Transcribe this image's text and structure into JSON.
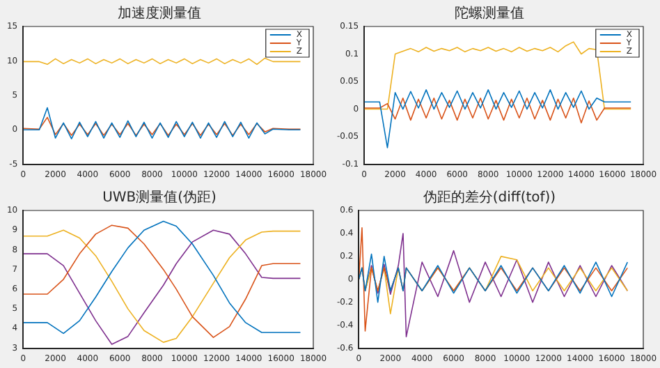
{
  "chart_data": [
    {
      "type": "line",
      "title": "加速度测量值",
      "x": [
        0,
        1000,
        1500,
        2000,
        2500,
        3000,
        3500,
        4000,
        4500,
        5000,
        5500,
        6000,
        6500,
        7000,
        7500,
        8000,
        8500,
        9000,
        9500,
        10000,
        10500,
        11000,
        11500,
        12000,
        12500,
        13000,
        13500,
        14000,
        14500,
        15000,
        15500,
        16500,
        17200
      ],
      "xlim": [
        0,
        18000
      ],
      "xticks": [
        0,
        2000,
        4000,
        6000,
        8000,
        10000,
        12000,
        14000,
        16000,
        18000
      ],
      "ylim": [
        -5,
        15
      ],
      "yticks": [
        -5,
        0,
        5,
        10,
        15
      ],
      "legend": "top right",
      "series": [
        {
          "name": "X",
          "color": "#0072bd",
          "values": [
            0,
            0,
            3.2,
            -1.2,
            1,
            -1.3,
            1.1,
            -1,
            1.2,
            -1.2,
            1,
            -1.1,
            1.3,
            -1,
            1.1,
            -1.2,
            1,
            -1.1,
            1.2,
            -1,
            1.1,
            -1.2,
            1,
            -1.1,
            1.2,
            -1,
            1.1,
            -1.2,
            1,
            -0.6,
            0.1,
            0,
            0
          ]
        },
        {
          "name": "Y",
          "color": "#d95319",
          "values": [
            0.2,
            0.1,
            1.8,
            -0.7,
            0.9,
            -0.8,
            0.8,
            -0.7,
            0.9,
            -0.8,
            0.8,
            -0.7,
            0.9,
            -0.8,
            0.8,
            -0.7,
            0.9,
            -0.8,
            0.8,
            -0.7,
            0.9,
            -0.8,
            0.8,
            -0.7,
            0.9,
            -0.8,
            0.8,
            -0.7,
            0.9,
            -0.3,
            0.2,
            0.1,
            0.1
          ]
        },
        {
          "name": "Z",
          "color": "#edb120",
          "values": [
            9.9,
            9.9,
            9.5,
            10.3,
            9.6,
            10.2,
            9.7,
            10.3,
            9.6,
            10.2,
            9.7,
            10.3,
            9.6,
            10.2,
            9.7,
            10.3,
            9.6,
            10.2,
            9.7,
            10.3,
            9.6,
            10.2,
            9.7,
            10.3,
            9.6,
            10.2,
            9.7,
            10.3,
            9.5,
            10.4,
            9.9,
            9.9,
            9.9
          ]
        }
      ]
    },
    {
      "type": "line",
      "title": "陀螺测量值",
      "x": [
        0,
        1000,
        1500,
        2000,
        2500,
        3000,
        3500,
        4000,
        4500,
        5000,
        5500,
        6000,
        6500,
        7000,
        7500,
        8000,
        8500,
        9000,
        9500,
        10000,
        10500,
        11000,
        11500,
        12000,
        12500,
        13000,
        13500,
        14000,
        14500,
        15000,
        15500,
        16500,
        17200
      ],
      "xlim": [
        0,
        18000
      ],
      "xticks": [
        0,
        2000,
        4000,
        6000,
        8000,
        10000,
        12000,
        14000,
        16000,
        18000
      ],
      "ylim": [
        -0.1,
        0.15
      ],
      "yticks": [
        -0.1,
        -0.05,
        0,
        0.05,
        0.1,
        0.15
      ],
      "legend": "top right",
      "series": [
        {
          "name": "X",
          "color": "#0072bd",
          "values": [
            0.013,
            0.013,
            -0.07,
            0.03,
            0,
            0.032,
            0.002,
            0.035,
            0,
            0.03,
            0.003,
            0.033,
            0,
            0.03,
            0.002,
            0.035,
            0,
            0.03,
            0.003,
            0.033,
            0,
            0.03,
            0.002,
            0.035,
            0,
            0.03,
            0.003,
            0.033,
            0,
            0.02,
            0.013,
            0.013,
            0.013
          ]
        },
        {
          "name": "Y",
          "color": "#d95319",
          "values": [
            0.002,
            0.002,
            0.01,
            -0.018,
            0.02,
            -0.02,
            0.018,
            -0.016,
            0.02,
            -0.018,
            0.016,
            -0.02,
            0.018,
            -0.016,
            0.02,
            -0.018,
            0.016,
            -0.02,
            0.018,
            -0.016,
            0.02,
            -0.018,
            0.016,
            -0.02,
            0.018,
            -0.016,
            0.02,
            -0.025,
            0.015,
            -0.02,
            0.002,
            0.002,
            0.002
          ]
        },
        {
          "name": "Z",
          "color": "#edb120",
          "values": [
            0,
            0,
            0,
            0.1,
            0.105,
            0.11,
            0.104,
            0.112,
            0.105,
            0.11,
            0.106,
            0.112,
            0.104,
            0.11,
            0.106,
            0.112,
            0.105,
            0.11,
            0.104,
            0.112,
            0.105,
            0.11,
            0.106,
            0.112,
            0.104,
            0.115,
            0.122,
            0.1,
            0.11,
            0.108,
            0,
            0,
            0
          ]
        }
      ]
    },
    {
      "type": "line",
      "title": "UWB测量值(伪距)",
      "x": [
        0,
        1500,
        2500,
        3500,
        4500,
        5500,
        6500,
        7500,
        8700,
        9500,
        10500,
        11800,
        12800,
        13800,
        14800,
        15500,
        17200
      ],
      "xlim": [
        0,
        18000
      ],
      "xticks": [
        0,
        2000,
        4000,
        6000,
        8000,
        10000,
        12000,
        14000,
        16000,
        18000
      ],
      "ylim": [
        3,
        10
      ],
      "yticks": [
        3,
        4,
        5,
        6,
        7,
        8,
        9,
        10
      ],
      "series": [
        {
          "color": "#0072bd",
          "values": [
            4.3,
            4.3,
            3.75,
            4.4,
            5.6,
            6.9,
            8.1,
            9.0,
            9.45,
            9.2,
            8.3,
            6.7,
            5.3,
            4.3,
            3.8,
            3.8,
            3.8
          ]
        },
        {
          "color": "#d95319",
          "values": [
            5.75,
            5.75,
            6.5,
            7.8,
            8.8,
            9.25,
            9.1,
            8.3,
            7.0,
            6.0,
            4.6,
            3.55,
            4.1,
            5.5,
            7.2,
            7.3,
            7.3
          ]
        },
        {
          "color": "#edb120",
          "values": [
            8.7,
            8.7,
            9.0,
            8.6,
            7.7,
            6.4,
            5.0,
            3.9,
            3.3,
            3.5,
            4.6,
            6.3,
            7.6,
            8.5,
            8.9,
            8.95,
            8.95
          ]
        },
        {
          "color": "#7e2f8e",
          "values": [
            7.8,
            7.8,
            7.2,
            5.8,
            4.4,
            3.2,
            3.6,
            4.8,
            6.2,
            7.3,
            8.4,
            9.0,
            8.8,
            7.8,
            6.6,
            6.55,
            6.55
          ]
        }
      ]
    },
    {
      "type": "line",
      "title": "伪距的差分(diff(tof))",
      "x": [
        0,
        200,
        400,
        800,
        1200,
        1600,
        2000,
        2500,
        2800,
        3000,
        4000,
        5000,
        6000,
        7000,
        8000,
        9000,
        10000,
        11000,
        12000,
        13000,
        14000,
        15000,
        16000,
        17000
      ],
      "xlim": [
        0,
        18000
      ],
      "xticks": [
        0,
        2000,
        4000,
        6000,
        8000,
        10000,
        12000,
        14000,
        16000,
        18000
      ],
      "ylim": [
        -0.6,
        0.6
      ],
      "yticks": [
        -0.6,
        -0.4,
        -0.2,
        0,
        0.2,
        0.4,
        0.6
      ],
      "series": [
        {
          "color": "#0072bd",
          "values": [
            0,
            0.1,
            -0.1,
            0.22,
            -0.2,
            0.2,
            -0.1,
            0.1,
            -0.1,
            0.1,
            -0.1,
            0.12,
            -0.12,
            0.1,
            -0.1,
            0.12,
            -0.12,
            0.1,
            -0.1,
            0.12,
            -0.12,
            0.15,
            -0.15,
            0.15
          ]
        },
        {
          "color": "#d95319",
          "values": [
            0,
            0.45,
            -0.45,
            0.1,
            -0.1,
            0.1,
            -0.1,
            0.1,
            -0.1,
            0.1,
            -0.1,
            0.1,
            -0.1,
            0.1,
            -0.1,
            0.1,
            -0.1,
            0.1,
            -0.1,
            0.1,
            -0.1,
            0.1,
            -0.1,
            0.1
          ]
        },
        {
          "color": "#edb120",
          "values": [
            0,
            0.1,
            -0.1,
            0.1,
            -0.1,
            0.1,
            -0.3,
            0.1,
            -0.1,
            0.1,
            -0.1,
            0.1,
            -0.1,
            0.1,
            -0.1,
            0.2,
            0.17,
            -0.1,
            0.1,
            -0.1,
            0.1,
            -0.1,
            0.1,
            -0.1
          ]
        },
        {
          "color": "#7e2f8e",
          "values": [
            0,
            0.1,
            -0.1,
            0.12,
            -0.12,
            0.13,
            -0.13,
            0.12,
            0.4,
            -0.5,
            0.15,
            -0.15,
            0.25,
            -0.2,
            0.15,
            -0.15,
            0.17,
            -0.2,
            0.15,
            -0.15,
            0.12,
            -0.15,
            0.12,
            -0.1
          ]
        }
      ]
    }
  ]
}
